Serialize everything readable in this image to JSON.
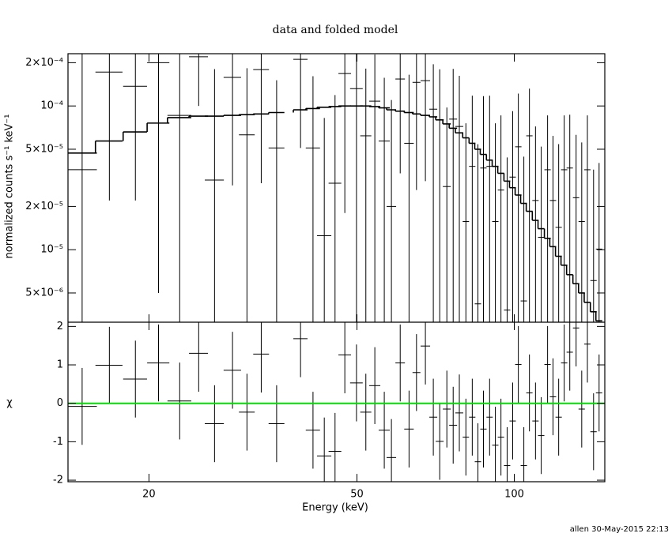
{
  "chart_data": [
    {
      "type": "errorbar",
      "title": "data and folded model",
      "ylabel": "normalized counts s⁻¹ keV⁻¹",
      "log_x": true,
      "log_y": true,
      "xlim": [
        14,
        149
      ],
      "ylim": [
        3.13e-06,
        0.000231
      ],
      "yticks": [
        {
          "value": 5e-06,
          "label": "5×10⁻⁶"
        },
        {
          "value": 1e-05,
          "label": "10⁻⁵"
        },
        {
          "value": 2e-05,
          "label": "2×10⁻⁵"
        },
        {
          "value": 5e-05,
          "label": "5×10⁻⁵"
        },
        {
          "value": 0.0001,
          "label": "10⁻⁴"
        },
        {
          "value": 0.0002,
          "label": "2×10⁻⁴"
        }
      ],
      "color": "#000000",
      "model_color": "#000000",
      "x": [
        14.9,
        16.8,
        18.84,
        20.86,
        22.9,
        24.9,
        26.7,
        28.9,
        30.8,
        32.8,
        35.1,
        39.0,
        41.2,
        43.3,
        45.4,
        47.4,
        49.9,
        52.0,
        54.1,
        56.4,
        58.2,
        60.5,
        62.9,
        65.0,
        67.6,
        70.0,
        72.0,
        74.3,
        76.4,
        78.5,
        80.8,
        83.1,
        85.2,
        87.3,
        89.7,
        92.0,
        94.3,
        96.9,
        99.3,
        101.8,
        104.3,
        106.9,
        109.8,
        112.6,
        115.8,
        118.6,
        121.6,
        124.6,
        127.7,
        131.3,
        134.6,
        138.0,
        141.8,
        145.3
      ],
      "xerr": [
        1.0,
        1.0,
        0.99,
        1.02,
        1.2,
        1.04,
        1.12,
        1.11,
        1.07,
        1.14,
        1.22,
        1.22,
        1.29,
        1.36,
        1.27,
        1.32,
        1.39,
        1.27,
        1.32,
        1.38,
        1.22,
        1.27,
        1.32,
        1.13,
        1.42,
        1.22,
        1.26,
        1.3,
        1.33,
        1.37,
        1.13,
        1.16,
        1.19,
        1.22,
        1.25,
        1.28,
        1.32,
        1.35,
        1.39,
        1.42,
        1.46,
        1.49,
        1.53,
        1.57,
        1.62,
        1.66,
        1.7,
        1.74,
        1.78,
        1.83,
        1.88,
        1.93,
        1.98,
        2.03
      ],
      "values": [
        3.6e-05,
        0.000172,
        0.000137,
        0.0002,
        8.6e-05,
        0.00022,
        3.05e-05,
        0.000158,
        6.3e-05,
        0.000179,
        5.1e-05,
        0.000211,
        5.1e-05,
        1.25e-05,
        2.9e-05,
        0.000168,
        0.000132,
        6.2e-05,
        0.000108,
        5.7e-05,
        2e-05,
        0.000154,
        5.5e-05,
        0.000146,
        0.00015,
        9.5e-05,
        8e-05,
        2.75e-05,
        8.1e-05,
        7.2e-05,
        1.57e-05,
        3.8e-05,
        4.2e-06,
        3.7e-05,
        3.8e-05,
        1.57e-05,
        2.6e-05,
        3.8e-06,
        3.2e-05,
        5.2e-05,
        4.4e-06,
        6.2e-05,
        2.2e-05,
        1.22e-05,
        3.6e-05,
        2.2e-05,
        1.43e-05,
        3.6e-05,
        3.7e-05,
        2.3e-05,
        1.57e-05,
        3.6e-05,
        6.1e-06,
        1.01e-05
      ],
      "errors": [
        0.0002,
        0.00015,
        0.000115,
        0.000195,
        0.00015,
        0.00012,
        0.00015,
        0.00013,
        0.00012,
        0.00015,
        0.0001,
        0.00016,
        0.00011,
        7e-05,
        9e-05,
        0.00015,
        0.00013,
        0.00012,
        0.00012,
        0.0001,
        9e-05,
        0.00012,
        0.00011,
        0.00012,
        0.00012,
        0.0001,
        0.0001,
        7e-05,
        0.0001,
        9e-05,
        6e-05,
        8e-05,
        5e-05,
        8e-05,
        8e-05,
        6e-05,
        6e-05,
        4e-05,
        6e-05,
        7e-05,
        4e-05,
        7e-05,
        5e-05,
        4e-05,
        5e-05,
        4e-05,
        4e-05,
        5e-05,
        5e-05,
        4e-05,
        4e-05,
        5e-05,
        3e-05,
        3e-05
      ],
      "model": [
        4.7e-05,
        5.7e-05,
        6.6e-05,
        7.6e-05,
        8.3e-05,
        8.5e-05,
        8.5e-05,
        8.6e-05,
        8.7e-05,
        8.8e-05,
        9e-05,
        9.4e-05,
        9.6e-05,
        9.8e-05,
        9.9e-05,
        0.0001,
        0.0001,
        0.0001,
        9.9e-05,
        9.7e-05,
        9.4e-05,
        9.2e-05,
        9e-05,
        8.8e-05,
        8.6e-05,
        8.4e-05,
        8e-05,
        7.5e-05,
        7e-05,
        6.5e-05,
        6e-05,
        5.5e-05,
        5e-05,
        4.6e-05,
        4.2e-05,
        3.8e-05,
        3.4e-05,
        3e-05,
        2.7e-05,
        2.4e-05,
        2.1e-05,
        1.85e-05,
        1.6e-05,
        1.4e-05,
        1.2e-05,
        1.05e-05,
        9e-06,
        7.8e-06,
        6.7e-06,
        5.8e-06,
        5e-06,
        4.3e-06,
        3.7e-06,
        3.2e-06
      ]
    },
    {
      "type": "residual",
      "xlabel": "Energy (keV)",
      "ylabel": "χ",
      "log_x": true,
      "xlim": [
        14,
        149
      ],
      "xticks": [
        20,
        50,
        100
      ],
      "ylim": [
        -2.04,
        2.11
      ],
      "yticks": [
        -2,
        -1,
        0,
        1,
        2
      ],
      "color": "#000000",
      "error": 1,
      "reference": {
        "value": 0,
        "color": "#00dd00"
      },
      "values": [
        -0.08,
        0.99,
        0.63,
        1.05,
        0.06,
        1.3,
        -0.53,
        0.86,
        -0.23,
        1.28,
        -0.53,
        1.68,
        -0.7,
        -1.37,
        -1.25,
        1.26,
        0.53,
        -0.23,
        0.46,
        -0.7,
        -1.41,
        1.05,
        -0.67,
        0.8,
        1.49,
        -0.36,
        -0.99,
        -0.15,
        -0.57,
        -0.25,
        -0.88,
        -0.36,
        -1.52,
        -0.67,
        -0.36,
        -1.09,
        -0.88,
        -1.62,
        -0.46,
        1.01,
        -1.62,
        0.27,
        -0.46,
        -0.84,
        1.01,
        0.17,
        -0.36,
        1.05,
        1.33,
        1.96,
        -0.15,
        1.54,
        -0.74,
        0.27
      ]
    }
  ],
  "footer": "allen 30-May-2015 22:13"
}
